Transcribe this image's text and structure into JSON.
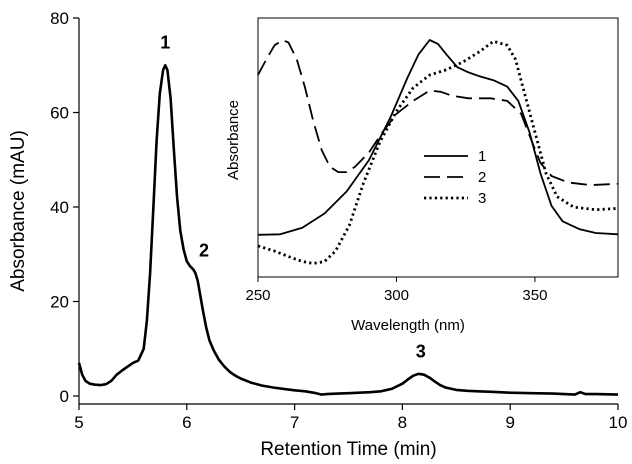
{
  "chart_data": [
    {
      "type": "line",
      "title": "",
      "xlabel": "Retention Time (min)",
      "ylabel": "Absorbance (mAU)",
      "xlim": [
        5,
        10
      ],
      "ylim": [
        -3,
        80
      ],
      "xticks": [
        5,
        6,
        7,
        8,
        9,
        10
      ],
      "yticks": [
        0,
        20,
        40,
        60,
        80
      ],
      "grid": false,
      "series": [
        {
          "x": [
            5.0,
            5.03,
            5.06,
            5.1,
            5.15,
            5.2,
            5.25,
            5.3,
            5.35,
            5.4,
            5.45,
            5.5,
            5.55,
            5.6,
            5.63,
            5.66,
            5.69,
            5.72,
            5.75,
            5.78,
            5.8,
            5.82,
            5.85,
            5.88,
            5.91,
            5.94,
            5.97,
            6.0,
            6.03,
            6.06,
            6.08,
            6.1,
            6.12,
            6.15,
            6.18,
            6.21,
            6.25,
            6.3,
            6.35,
            6.4,
            6.45,
            6.5,
            6.6,
            6.7,
            6.8,
            6.9,
            7.0,
            7.1,
            7.2,
            7.25,
            7.3,
            7.4,
            7.5,
            7.6,
            7.7,
            7.8,
            7.9,
            8.0,
            8.05,
            8.1,
            8.15,
            8.2,
            8.25,
            8.3,
            8.35,
            8.4,
            8.5,
            8.6,
            8.7,
            8.8,
            8.9,
            9.0,
            9.2,
            9.4,
            9.6,
            9.65,
            9.7,
            9.8,
            10.0
          ],
          "y": [
            7.0,
            4.5,
            3.2,
            2.6,
            2.4,
            2.3,
            2.5,
            3.2,
            4.5,
            5.4,
            6.2,
            7.0,
            7.5,
            10.0,
            16.0,
            26.0,
            40.0,
            54.0,
            64.0,
            69.0,
            70.0,
            69.0,
            63.0,
            52.0,
            42.0,
            35.0,
            31.0,
            28.5,
            27.5,
            26.8,
            26.0,
            24.5,
            22.0,
            18.0,
            14.5,
            11.8,
            9.6,
            7.6,
            6.2,
            5.1,
            4.3,
            3.7,
            2.8,
            2.2,
            1.8,
            1.5,
            1.2,
            1.0,
            0.6,
            0.3,
            0.4,
            0.5,
            0.6,
            0.7,
            0.8,
            1.0,
            1.5,
            2.6,
            3.5,
            4.3,
            4.7,
            4.5,
            3.9,
            3.1,
            2.3,
            1.8,
            1.3,
            1.1,
            1.0,
            0.9,
            0.8,
            0.7,
            0.6,
            0.5,
            0.3,
            0.8,
            0.4,
            0.4,
            0.3
          ]
        }
      ],
      "annotations": [
        {
          "text": "1",
          "x": 5.8,
          "y": 73.5
        },
        {
          "text": "2",
          "x": 6.16,
          "y": 29.5
        },
        {
          "text": "3",
          "x": 8.17,
          "y": 8.2
        }
      ]
    },
    {
      "type": "line",
      "title": "",
      "xlabel": "Wavelength (nm)",
      "ylabel": "Absorbance",
      "xlim": [
        250,
        380
      ],
      "ylim": [
        0,
        1
      ],
      "xticks": [
        250,
        300,
        350
      ],
      "yticks": [],
      "legend": "center-right",
      "series": [
        {
          "name": "1",
          "dash": "solid",
          "x": [
            250,
            258,
            266,
            274,
            282,
            290,
            298,
            304,
            308,
            312,
            315,
            318,
            322,
            326,
            330,
            335,
            340,
            344,
            348,
            352,
            356,
            360,
            366,
            372,
            380
          ],
          "y": [
            0.163,
            0.165,
            0.19,
            0.245,
            0.33,
            0.45,
            0.62,
            0.77,
            0.86,
            0.915,
            0.9,
            0.86,
            0.81,
            0.79,
            0.775,
            0.76,
            0.735,
            0.68,
            0.56,
            0.4,
            0.275,
            0.215,
            0.185,
            0.17,
            0.165
          ]
        },
        {
          "name": "2",
          "dash": "long",
          "x": [
            250,
            253,
            256,
            259,
            261,
            264,
            267,
            270,
            273,
            276,
            279,
            282,
            285,
            290,
            295,
            300,
            306,
            312,
            316,
            320,
            326,
            334,
            340,
            345,
            349,
            352,
            356,
            362,
            370,
            380
          ],
          "y": [
            0.78,
            0.84,
            0.895,
            0.915,
            0.905,
            0.84,
            0.73,
            0.6,
            0.49,
            0.425,
            0.405,
            0.405,
            0.425,
            0.48,
            0.56,
            0.63,
            0.68,
            0.72,
            0.715,
            0.7,
            0.69,
            0.69,
            0.68,
            0.63,
            0.52,
            0.44,
            0.39,
            0.365,
            0.355,
            0.36
          ]
        },
        {
          "name": "3",
          "dash": "dotted",
          "x": [
            250,
            256,
            262,
            266,
            270,
            274,
            278,
            283,
            288,
            294,
            300,
            306,
            312,
            318,
            324,
            330,
            335,
            340,
            343,
            346,
            350,
            354,
            358,
            364,
            372,
            380
          ],
          "y": [
            0.12,
            0.1,
            0.075,
            0.06,
            0.052,
            0.06,
            0.1,
            0.2,
            0.36,
            0.52,
            0.64,
            0.73,
            0.78,
            0.8,
            0.83,
            0.87,
            0.91,
            0.895,
            0.84,
            0.72,
            0.56,
            0.4,
            0.31,
            0.27,
            0.26,
            0.265
          ]
        }
      ]
    }
  ]
}
